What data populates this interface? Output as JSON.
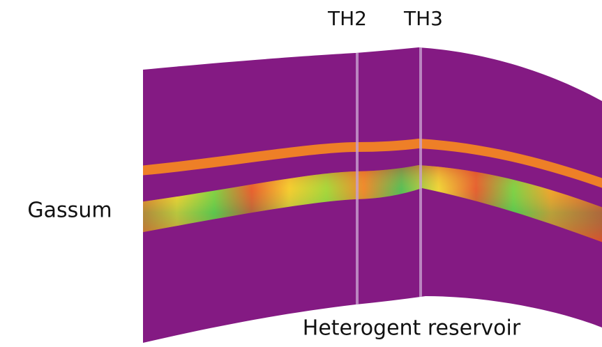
{
  "wells": [
    "TH2",
    "TH3"
  ],
  "formation": "Gassum",
  "caption": "Heterogent reservoir"
}
